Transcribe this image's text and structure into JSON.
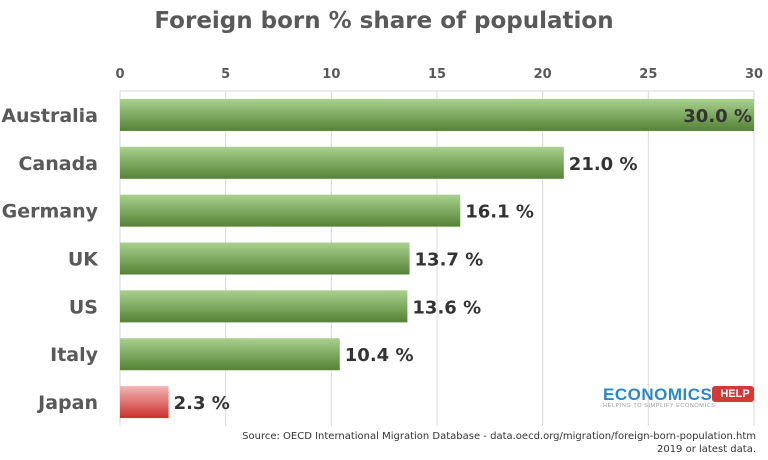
{
  "chart_data": {
    "type": "bar",
    "orientation": "horizontal",
    "title": "Foreign born % share of population",
    "categories": [
      "Australia",
      "Canada",
      "Germany",
      "UK",
      "US",
      "Italy",
      "Japan"
    ],
    "values": [
      30.0,
      21.0,
      16.1,
      13.7,
      13.6,
      10.4,
      2.3
    ],
    "data_labels": [
      "30.0 %",
      "21.0 %",
      "16.1 %",
      "13.7 %",
      "13.6 %",
      "10.4 %",
      "2.3 %"
    ],
    "xlim": [
      0,
      30
    ],
    "xticks": [
      "0",
      "5",
      "10",
      "15",
      "20",
      "25",
      "30"
    ],
    "xaxis_position": "top",
    "grid": true,
    "colors": {
      "default": "#6aaa4e",
      "highlight": "#e06666"
    },
    "highlight_category": "Japan"
  },
  "source": {
    "line1": "Source: OECD International Migration Database - data.oecd.org/migration/foreign-born-population.htm",
    "line2": "2019 or latest data."
  },
  "logo": {
    "main": "ECONOMICS",
    "badge": "HELP",
    "tagline": "HELPING TO SIMPLIFY ECONOMICS"
  }
}
